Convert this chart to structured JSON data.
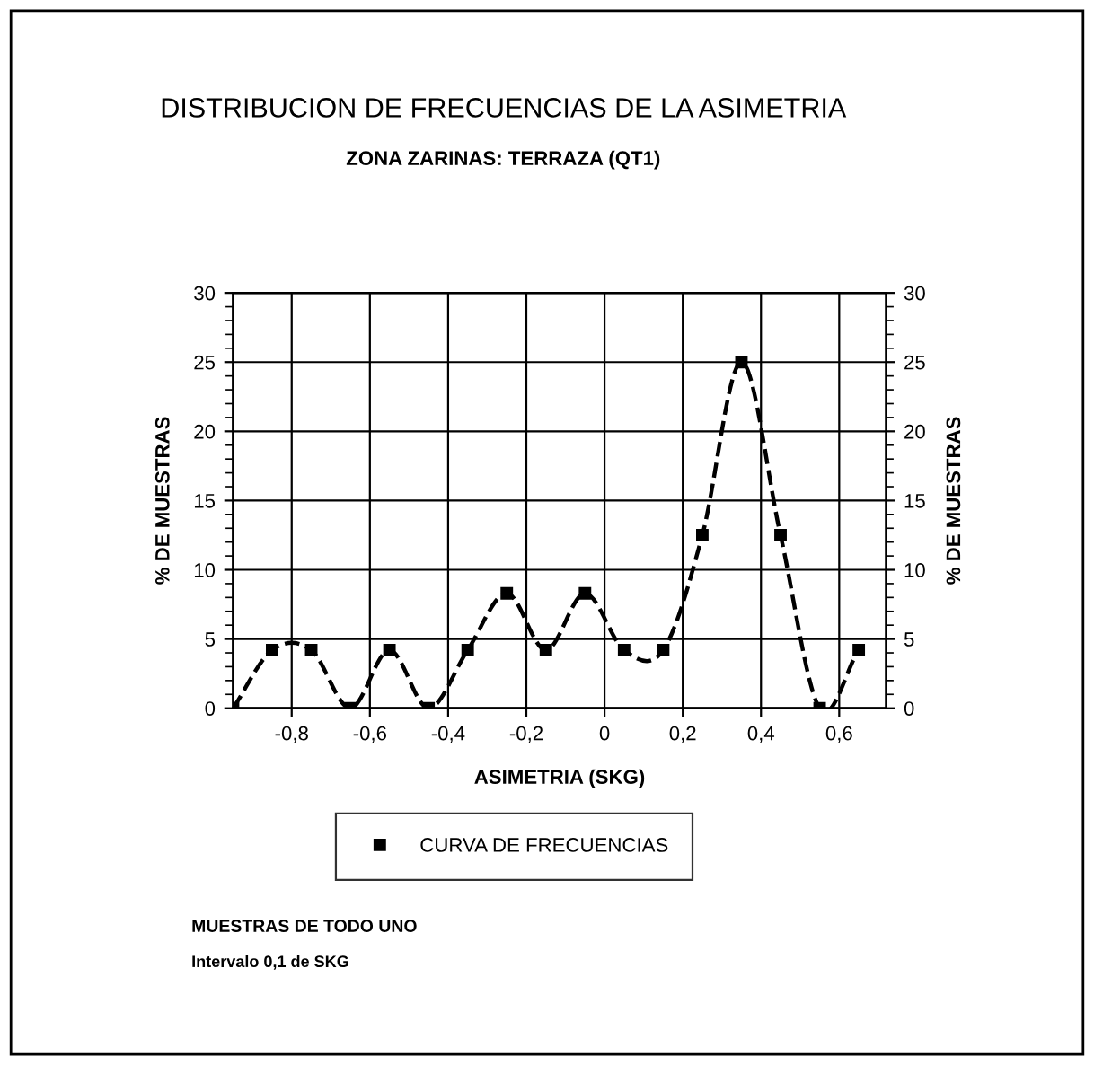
{
  "chart_data": {
    "type": "line",
    "title": "DISTRIBUCION DE FRECUENCIAS DE LA ASIMETRIA",
    "subtitle": "ZONA ZARINAS: TERRAZA (QT1)",
    "xlabel": "ASIMETRIA (SKG)",
    "ylabel": "% DE MUESTRAS",
    "y2label": "% DE MUESTRAS",
    "x": [
      -0.95,
      -0.85,
      -0.75,
      -0.65,
      -0.55,
      -0.45,
      -0.35,
      -0.25,
      -0.15,
      -0.05,
      0.05,
      0.15,
      0.25,
      0.35,
      0.45,
      0.55,
      0.65
    ],
    "series": [
      {
        "name": "CURVA DE FRECUENCIAS",
        "color": "#000000",
        "values": [
          0,
          4.2,
          4.2,
          0,
          4.2,
          0,
          4.2,
          8.3,
          4.2,
          8.3,
          4.2,
          4.2,
          12.5,
          25,
          12.5,
          0,
          4.2
        ]
      }
    ],
    "xlim": [
      -0.95,
      0.72
    ],
    "xticks": [
      {
        "value": -0.8,
        "label": "-0,8"
      },
      {
        "value": -0.6,
        "label": "-0,6"
      },
      {
        "value": -0.4,
        "label": "-0,4"
      },
      {
        "value": -0.2,
        "label": "-0,2"
      },
      0,
      {
        "value": 0.2,
        "label": "0,2"
      },
      {
        "value": 0.4,
        "label": "0,4"
      },
      {
        "value": 0.6,
        "label": "0,6"
      }
    ],
    "ylim": [
      0,
      30
    ],
    "yticks": [
      0,
      5,
      10,
      15,
      20,
      25,
      30
    ],
    "y2lim": [
      0,
      30
    ],
    "y2ticks": [
      0,
      5,
      10,
      15,
      20,
      25,
      30
    ],
    "grid": true,
    "legend": "bottom",
    "marker": "square",
    "line_style": "dashed",
    "annotations": [
      "MUESTRAS DE TODO UNO",
      "Intervalo 0,1 de SKG"
    ]
  }
}
